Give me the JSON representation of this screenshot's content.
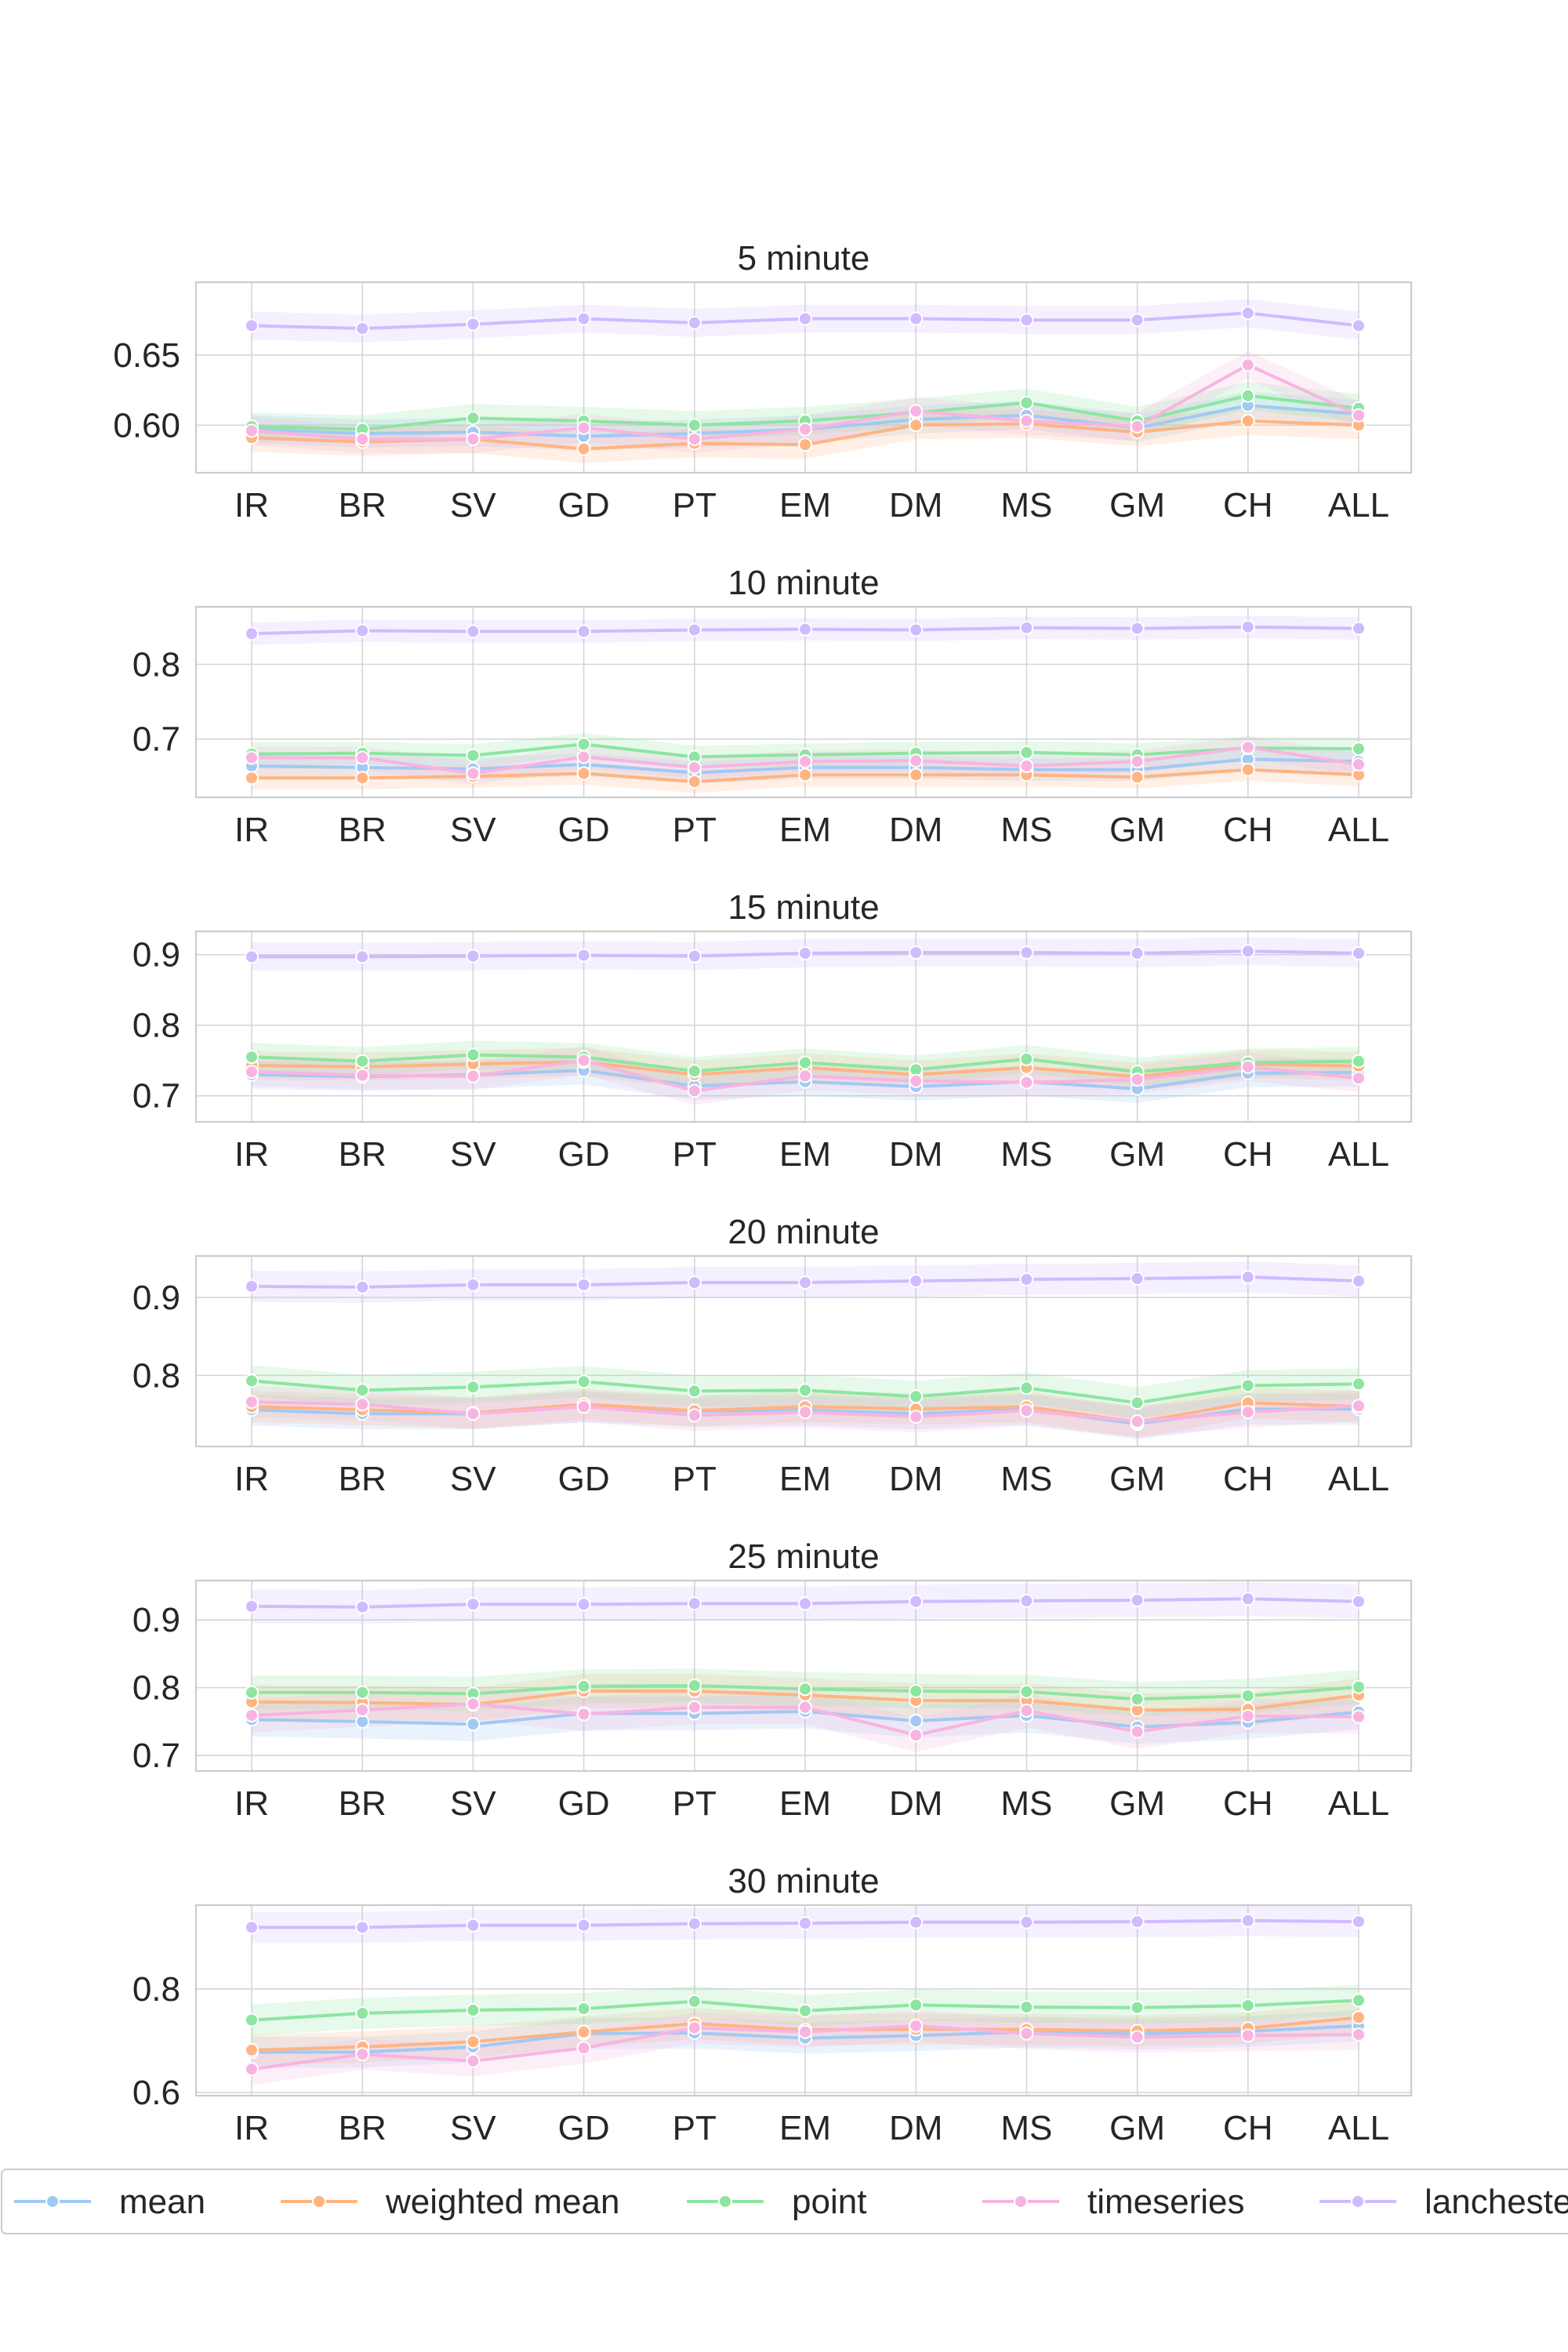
{
  "chart_data": [
    {
      "type": "line",
      "title": "5 minute",
      "categories": [
        "IR",
        "BR",
        "SV",
        "GD",
        "PT",
        "EM",
        "DM",
        "MS",
        "GM",
        "CH",
        "ALL"
      ],
      "yticks": [
        0.6,
        0.65
      ],
      "ytick_labels": [
        "0.60",
        "0.65"
      ],
      "ylim": [
        0.566,
        0.702
      ],
      "series": [
        {
          "name": "mean",
          "values": [
            0.597,
            0.594,
            0.595,
            0.592,
            0.594,
            0.597,
            0.604,
            0.607,
            0.598,
            0.614,
            0.608
          ]
        },
        {
          "name": "weighted mean",
          "values": [
            0.591,
            0.588,
            0.59,
            0.583,
            0.587,
            0.586,
            0.6,
            0.601,
            0.595,
            0.603,
            0.6
          ]
        },
        {
          "name": "point",
          "values": [
            0.599,
            0.597,
            0.605,
            0.603,
            0.6,
            0.603,
            0.609,
            0.616,
            0.603,
            0.621,
            0.612
          ]
        },
        {
          "name": "timeseries",
          "values": [
            0.596,
            0.59,
            0.59,
            0.598,
            0.59,
            0.597,
            0.61,
            0.603,
            0.599,
            0.643,
            0.607
          ]
        },
        {
          "name": "lanchester",
          "values": [
            0.671,
            0.669,
            0.672,
            0.676,
            0.673,
            0.676,
            0.676,
            0.675,
            0.675,
            0.68,
            0.671
          ]
        }
      ]
    },
    {
      "type": "line",
      "title": "10 minute",
      "categories": [
        "IR",
        "BR",
        "SV",
        "GD",
        "PT",
        "EM",
        "DM",
        "MS",
        "GM",
        "CH",
        "ALL"
      ],
      "yticks": [
        0.7,
        0.8
      ],
      "ytick_labels": [
        "0.7",
        "0.8"
      ],
      "ylim": [
        0.622,
        0.877
      ],
      "series": [
        {
          "name": "mean",
          "values": [
            0.664,
            0.662,
            0.66,
            0.666,
            0.655,
            0.662,
            0.662,
            0.659,
            0.659,
            0.673,
            0.67
          ]
        },
        {
          "name": "weighted mean",
          "values": [
            0.648,
            0.648,
            0.65,
            0.654,
            0.643,
            0.652,
            0.652,
            0.652,
            0.649,
            0.659,
            0.652
          ]
        },
        {
          "name": "point",
          "values": [
            0.68,
            0.681,
            0.678,
            0.693,
            0.676,
            0.679,
            0.681,
            0.682,
            0.679,
            0.688,
            0.687
          ]
        },
        {
          "name": "timeseries",
          "values": [
            0.675,
            0.675,
            0.654,
            0.676,
            0.662,
            0.67,
            0.671,
            0.664,
            0.67,
            0.689,
            0.666
          ]
        },
        {
          "name": "lanchester",
          "values": [
            0.841,
            0.845,
            0.844,
            0.844,
            0.846,
            0.847,
            0.846,
            0.849,
            0.848,
            0.85,
            0.848
          ]
        }
      ]
    },
    {
      "type": "line",
      "title": "15 minute",
      "categories": [
        "IR",
        "BR",
        "SV",
        "GD",
        "PT",
        "EM",
        "DM",
        "MS",
        "GM",
        "CH",
        "ALL"
      ],
      "yticks": [
        0.7,
        0.8,
        0.9
      ],
      "ytick_labels": [
        "0.7",
        "0.8",
        "0.9"
      ],
      "ylim": [
        0.663,
        0.933
      ],
      "series": [
        {
          "name": "mean",
          "values": [
            0.73,
            0.727,
            0.73,
            0.736,
            0.714,
            0.72,
            0.713,
            0.72,
            0.71,
            0.732,
            0.733
          ]
        },
        {
          "name": "weighted mean",
          "values": [
            0.743,
            0.741,
            0.745,
            0.748,
            0.73,
            0.74,
            0.73,
            0.74,
            0.727,
            0.745,
            0.742
          ]
        },
        {
          "name": "point",
          "values": [
            0.755,
            0.749,
            0.758,
            0.755,
            0.735,
            0.747,
            0.737,
            0.752,
            0.734,
            0.747,
            0.749
          ]
        },
        {
          "name": "timeseries",
          "values": [
            0.734,
            0.729,
            0.728,
            0.75,
            0.707,
            0.728,
            0.721,
            0.719,
            0.723,
            0.741,
            0.725
          ]
        },
        {
          "name": "lanchester",
          "values": [
            0.897,
            0.897,
            0.898,
            0.899,
            0.898,
            0.902,
            0.903,
            0.903,
            0.902,
            0.905,
            0.902
          ]
        }
      ]
    },
    {
      "type": "line",
      "title": "20 minute",
      "categories": [
        "IR",
        "BR",
        "SV",
        "GD",
        "PT",
        "EM",
        "DM",
        "MS",
        "GM",
        "CH",
        "ALL"
      ],
      "yticks": [
        0.8,
        0.9
      ],
      "ytick_labels": [
        "0.8",
        "0.9"
      ],
      "ylim": [
        0.709,
        0.953
      ],
      "series": [
        {
          "name": "mean",
          "values": [
            0.756,
            0.751,
            0.751,
            0.76,
            0.754,
            0.756,
            0.751,
            0.757,
            0.738,
            0.757,
            0.757
          ]
        },
        {
          "name": "weighted mean",
          "values": [
            0.76,
            0.756,
            0.752,
            0.763,
            0.755,
            0.76,
            0.757,
            0.76,
            0.74,
            0.765,
            0.76
          ]
        },
        {
          "name": "point",
          "values": [
            0.793,
            0.781,
            0.785,
            0.792,
            0.78,
            0.781,
            0.773,
            0.784,
            0.765,
            0.787,
            0.789
          ]
        },
        {
          "name": "timeseries",
          "values": [
            0.766,
            0.763,
            0.751,
            0.76,
            0.749,
            0.753,
            0.747,
            0.755,
            0.741,
            0.753,
            0.761
          ]
        },
        {
          "name": "lanchester",
          "values": [
            0.914,
            0.913,
            0.916,
            0.916,
            0.919,
            0.919,
            0.921,
            0.923,
            0.924,
            0.926,
            0.921
          ]
        }
      ]
    },
    {
      "type": "line",
      "title": "25 minute",
      "categories": [
        "IR",
        "BR",
        "SV",
        "GD",
        "PT",
        "EM",
        "DM",
        "MS",
        "GM",
        "CH",
        "ALL"
      ],
      "yticks": [
        0.7,
        0.8,
        0.9
      ],
      "ytick_labels": [
        "0.7",
        "0.8",
        "0.9"
      ],
      "ylim": [
        0.677,
        0.958
      ],
      "series": [
        {
          "name": "mean",
          "values": [
            0.753,
            0.75,
            0.746,
            0.762,
            0.762,
            0.765,
            0.751,
            0.759,
            0.742,
            0.749,
            0.764
          ]
        },
        {
          "name": "weighted mean",
          "values": [
            0.779,
            0.778,
            0.775,
            0.795,
            0.795,
            0.789,
            0.781,
            0.781,
            0.767,
            0.768,
            0.789
          ]
        },
        {
          "name": "point",
          "values": [
            0.793,
            0.793,
            0.791,
            0.802,
            0.803,
            0.798,
            0.795,
            0.794,
            0.783,
            0.788,
            0.801
          ]
        },
        {
          "name": "timeseries",
          "values": [
            0.759,
            0.767,
            0.776,
            0.761,
            0.771,
            0.771,
            0.73,
            0.766,
            0.735,
            0.758,
            0.757
          ]
        },
        {
          "name": "lanchester",
          "values": [
            0.92,
            0.919,
            0.923,
            0.923,
            0.924,
            0.924,
            0.927,
            0.928,
            0.929,
            0.931,
            0.927
          ]
        }
      ]
    },
    {
      "type": "line",
      "title": "30 minute",
      "categories": [
        "IR",
        "BR",
        "SV",
        "GD",
        "PT",
        "EM",
        "DM",
        "MS",
        "GM",
        "CH",
        "ALL"
      ],
      "yticks": [
        0.6,
        0.8
      ],
      "ytick_labels": [
        "0.6",
        "0.8"
      ],
      "ylim": [
        0.594,
        0.962
      ],
      "series": [
        {
          "name": "mean",
          "values": [
            0.678,
            0.678,
            0.688,
            0.714,
            0.715,
            0.705,
            0.71,
            0.717,
            0.713,
            0.718,
            0.729
          ]
        },
        {
          "name": "weighted mean",
          "values": [
            0.682,
            0.688,
            0.698,
            0.717,
            0.733,
            0.721,
            0.722,
            0.722,
            0.719,
            0.724,
            0.745
          ]
        },
        {
          "name": "point",
          "values": [
            0.74,
            0.753,
            0.759,
            0.762,
            0.776,
            0.758,
            0.769,
            0.765,
            0.764,
            0.768,
            0.778
          ]
        },
        {
          "name": "timeseries",
          "values": [
            0.645,
            0.674,
            0.661,
            0.686,
            0.725,
            0.717,
            0.729,
            0.714,
            0.707,
            0.71,
            0.712
          ]
        },
        {
          "name": "lanchester",
          "values": [
            0.919,
            0.919,
            0.923,
            0.923,
            0.926,
            0.927,
            0.929,
            0.929,
            0.93,
            0.932,
            0.93
          ]
        }
      ]
    }
  ],
  "colors": {
    "mean": "#a1c9f4",
    "weighted mean": "#ffb482",
    "point": "#8de5a1",
    "timeseries": "#f8b4e1",
    "lanchester": "#d0bbff",
    "grid": "#d5d5d5",
    "axes_edge": "#cccccc",
    "text": "#262626"
  },
  "legend": {
    "placement": "bottom",
    "entries": [
      "mean",
      "weighted mean",
      "point",
      "timeseries",
      "lanchester"
    ]
  },
  "band_widths": [
    0.01,
    0.015,
    0.02,
    0.02,
    0.025,
    0.03
  ]
}
